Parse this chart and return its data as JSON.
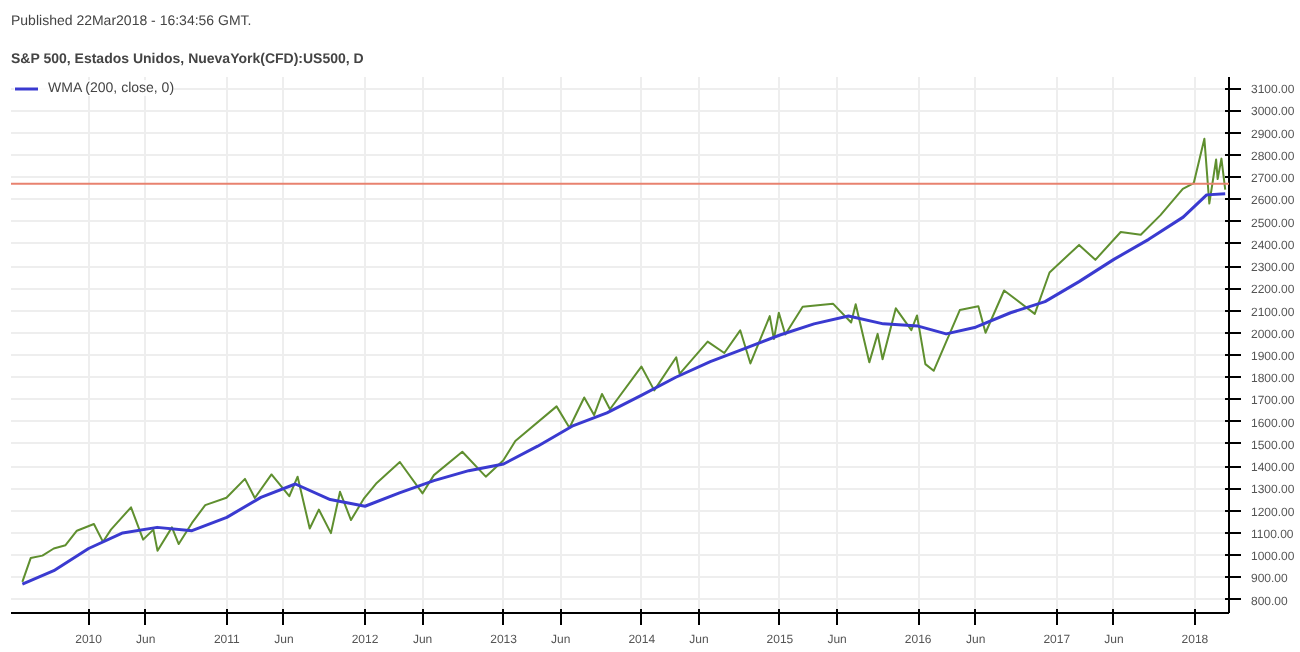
{
  "chart_data": {
    "type": "line",
    "title": "Published 22Mar2018 - 16:34:56 GMT.",
    "subtitle": "S&P 500, Estados Unidos, NuevaYork(CFD):US500, D",
    "xlim": [
      "2009-06-10",
      "2018-04-01"
    ],
    "xticks": [
      {
        "value": "2010-01-01",
        "label": "2010"
      },
      {
        "value": "2010-06-01",
        "label": "Jun"
      },
      {
        "value": "2011-01-01",
        "label": "2011"
      },
      {
        "value": "2011-06-01",
        "label": "Jun"
      },
      {
        "value": "2012-01-01",
        "label": "2012"
      },
      {
        "value": "2012-06-01",
        "label": "Jun"
      },
      {
        "value": "2013-01-01",
        "label": "2013"
      },
      {
        "value": "2013-06-01",
        "label": "Jun"
      },
      {
        "value": "2014-01-01",
        "label": "2014"
      },
      {
        "value": "2014-06-01",
        "label": "Jun"
      },
      {
        "value": "2015-01-01",
        "label": "2015"
      },
      {
        "value": "2015-06-01",
        "label": "Jun"
      },
      {
        "value": "2016-01-01",
        "label": "2016"
      },
      {
        "value": "2016-06-01",
        "label": "Jun"
      },
      {
        "value": "2017-01-01",
        "label": "2017"
      },
      {
        "value": "2017-06-01",
        "label": "Jun"
      },
      {
        "value": "2018-01-01",
        "label": "2018"
      }
    ],
    "ylim": [
      740,
      3150
    ],
    "yticks": [
      {
        "value": 800,
        "label": "800.00"
      },
      {
        "value": 900,
        "label": "900.00"
      },
      {
        "value": 1000,
        "label": "1000.00"
      },
      {
        "value": 1100,
        "label": "1100.00"
      },
      {
        "value": 1200,
        "label": "1200.00"
      },
      {
        "value": 1300,
        "label": "1300.00"
      },
      {
        "value": 1400,
        "label": "1400.00"
      },
      {
        "value": 1500,
        "label": "1500.00"
      },
      {
        "value": 1600,
        "label": "1600.00"
      },
      {
        "value": 1700,
        "label": "1700.00"
      },
      {
        "value": 1800,
        "label": "1800.00"
      },
      {
        "value": 1900,
        "label": "1900.00"
      },
      {
        "value": 2000,
        "label": "2000.00"
      },
      {
        "value": 2100,
        "label": "2100.00"
      },
      {
        "value": 2200,
        "label": "2200.00"
      },
      {
        "value": 2300,
        "label": "2300.00"
      },
      {
        "value": 2400,
        "label": "2400.00"
      },
      {
        "value": 2500,
        "label": "2500.00"
      },
      {
        "value": 2600,
        "label": "2600.00"
      },
      {
        "value": 2700,
        "label": "2700.00"
      },
      {
        "value": 2800,
        "label": "2800.00"
      },
      {
        "value": 2900,
        "label": "2900.00"
      },
      {
        "value": 3000,
        "label": "3000.00"
      },
      {
        "value": 3100,
        "label": "3100.00"
      }
    ],
    "grid": true,
    "legend": "top left",
    "ref_lines": [
      {
        "axis": "y",
        "value": 2670,
        "color": "#e8826f"
      }
    ],
    "series": [
      {
        "color": "#5f8f2f",
        "x": [
          "2009-07-10",
          "2009-08-01",
          "2009-09-01",
          "2009-10-01",
          "2009-11-01",
          "2009-12-01",
          "2010-01-15",
          "2010-02-08",
          "2010-03-01",
          "2010-04-23",
          "2010-05-25",
          "2010-06-21",
          "2010-07-02",
          "2010-08-09",
          "2010-08-27",
          "2010-10-01",
          "2010-11-05",
          "2010-12-31",
          "2011-02-18",
          "2011-03-16",
          "2011-04-29",
          "2011-06-15",
          "2011-07-07",
          "2011-08-08",
          "2011-09-01",
          "2011-10-03",
          "2011-10-27",
          "2011-11-25",
          "2011-12-30",
          "2012-02-01",
          "2012-04-02",
          "2012-06-01",
          "2012-07-01",
          "2012-09-14",
          "2012-11-15",
          "2012-12-31",
          "2013-02-01",
          "2013-05-21",
          "2013-06-24",
          "2013-08-02",
          "2013-08-28",
          "2013-09-18",
          "2013-10-09",
          "2013-12-31",
          "2014-02-03",
          "2014-04-02",
          "2014-04-11",
          "2014-06-24",
          "2014-08-07",
          "2014-09-18",
          "2014-10-15",
          "2014-12-05",
          "2014-12-16",
          "2014-12-29",
          "2015-01-15",
          "2015-03-02",
          "2015-05-21",
          "2015-07-08",
          "2015-07-20",
          "2015-08-25",
          "2015-09-16",
          "2015-09-29",
          "2015-11-03",
          "2015-12-14",
          "2015-12-29",
          "2016-01-20",
          "2016-02-11",
          "2016-04-20",
          "2016-06-08",
          "2016-06-27",
          "2016-08-15",
          "2016-11-04",
          "2016-12-13",
          "2017-03-01",
          "2017-04-13",
          "2017-06-19",
          "2017-08-11",
          "2017-10-02",
          "2017-11-30",
          "2017-12-29",
          "2018-01-26",
          "2018-02-08",
          "2018-02-26",
          "2018-03-02",
          "2018-03-12",
          "2018-03-22"
        ],
        "values": [
          880,
          987,
          998,
          1030,
          1045,
          1110,
          1140,
          1060,
          1115,
          1215,
          1070,
          1115,
          1020,
          1125,
          1050,
          1145,
          1225,
          1258,
          1343,
          1257,
          1363,
          1265,
          1353,
          1120,
          1205,
          1099,
          1285,
          1158,
          1257,
          1325,
          1419,
          1278,
          1360,
          1465,
          1353,
          1426,
          1513,
          1669,
          1573,
          1709,
          1630,
          1725,
          1656,
          1848,
          1741,
          1890,
          1815,
          1960,
          1909,
          2011,
          1862,
          2075,
          1972,
          2090,
          1992,
          2117,
          2131,
          2046,
          2128,
          1867,
          1995,
          1881,
          2110,
          2012,
          2078,
          1859,
          1829,
          2102,
          2119,
          2000,
          2190,
          2085,
          2271,
          2395,
          2328,
          2453,
          2441,
          2529,
          2647,
          2673,
          2872,
          2581,
          2779,
          2691,
          2783,
          2644
        ]
      },
      {
        "name": "WMA (200, close, 0)",
        "color": "#3a3ad0",
        "x": [
          "2009-07-10",
          "2009-10-01",
          "2010-01-01",
          "2010-04-01",
          "2010-07-01",
          "2010-10-01",
          "2011-01-01",
          "2011-04-01",
          "2011-07-01",
          "2011-10-01",
          "2012-01-01",
          "2012-04-01",
          "2012-07-01",
          "2012-10-01",
          "2013-01-01",
          "2013-04-01",
          "2013-07-01",
          "2013-10-01",
          "2014-01-01",
          "2014-04-01",
          "2014-07-01",
          "2014-10-01",
          "2015-01-01",
          "2015-04-01",
          "2015-07-01",
          "2015-10-01",
          "2016-01-01",
          "2016-03-15",
          "2016-06-01",
          "2016-09-01",
          "2016-12-01",
          "2017-03-01",
          "2017-06-01",
          "2017-09-01",
          "2017-12-01",
          "2018-02-01",
          "2018-03-22"
        ],
        "values": [
          870,
          930,
          1030,
          1100,
          1125,
          1110,
          1170,
          1260,
          1320,
          1250,
          1220,
          1280,
          1335,
          1380,
          1410,
          1490,
          1580,
          1640,
          1720,
          1800,
          1870,
          1930,
          1990,
          2040,
          2075,
          2040,
          2030,
          1995,
          2025,
          2090,
          2140,
          2230,
          2330,
          2420,
          2520,
          2620,
          2625
        ]
      }
    ]
  }
}
